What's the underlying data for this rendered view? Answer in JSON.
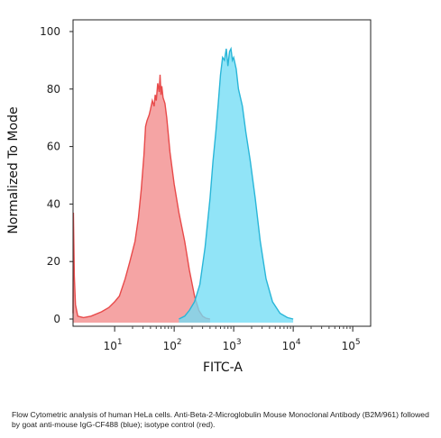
{
  "chart_data": {
    "type": "area",
    "xlabel": "FITC-A",
    "ylabel": "Normalized To Mode",
    "x_scale": "log",
    "xlim": [
      2,
      200000
    ],
    "ylim": [
      0,
      100
    ],
    "x_ticks": [
      {
        "value": 10,
        "base": "10",
        "exp": "1"
      },
      {
        "value": 100,
        "base": "10",
        "exp": "2"
      },
      {
        "value": 1000,
        "base": "10",
        "exp": "3"
      },
      {
        "value": 10000,
        "base": "10",
        "exp": "4"
      },
      {
        "value": 100000,
        "base": "10",
        "exp": "5"
      }
    ],
    "y_ticks": [
      0,
      20,
      40,
      60,
      80,
      100
    ],
    "grid": false,
    "legend": "none",
    "series": [
      {
        "color": "#e84a4a",
        "fill": "#f28a8a",
        "x": [
          2,
          2.03,
          2.1,
          2.2,
          2.4,
          3,
          4,
          6,
          8,
          10,
          12,
          15,
          18,
          22,
          25,
          28,
          31,
          33,
          35,
          38,
          40,
          43,
          46,
          48,
          50,
          53,
          56,
          58,
          60,
          62,
          65,
          70,
          75,
          85,
          100,
          120,
          150,
          180,
          220,
          260,
          300,
          340,
          400
        ],
        "y": [
          2,
          37,
          15,
          5,
          1,
          0.5,
          1,
          2.5,
          4,
          6,
          8,
          14,
          20,
          27,
          35,
          45,
          57,
          67,
          69,
          71,
          73,
          76,
          74,
          78,
          76,
          82,
          79,
          85,
          78,
          81,
          77,
          75,
          70,
          58,
          47,
          37,
          27,
          17,
          8,
          3,
          1,
          0.3,
          0
        ]
      },
      {
        "color": "#29b6d8",
        "fill": "#72dcf5",
        "x": [
          120,
          150,
          180,
          220,
          270,
          330,
          400,
          450,
          500,
          550,
          600,
          650,
          700,
          750,
          800,
          850,
          900,
          950,
          1000,
          1100,
          1200,
          1400,
          1600,
          1900,
          2300,
          2800,
          3500,
          4500,
          6000,
          8000,
          10000
        ],
        "y": [
          0,
          1,
          3,
          6,
          12,
          25,
          42,
          55,
          65,
          75,
          85,
          91,
          90,
          94,
          88,
          93,
          94,
          90,
          91,
          87,
          80,
          74,
          65,
          55,
          42,
          27,
          14,
          6,
          2,
          0.5,
          0
        ]
      }
    ]
  },
  "caption": "Flow Cytometric analysis of human HeLa cells. Anti-Beta-2-Microglobulin Mouse Monoclonal Antibody (B2M/961) followed by goat anti-mouse IgG-CF488 (blue); isotype control (red)."
}
